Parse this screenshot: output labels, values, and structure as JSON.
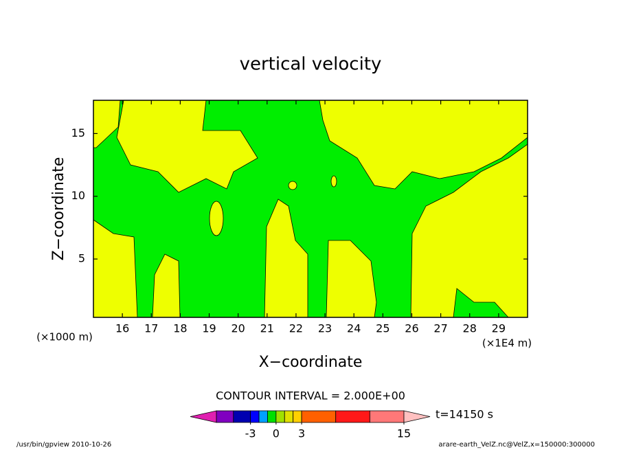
{
  "chart_data": {
    "type": "contour",
    "title": "vertical velocity",
    "xlabel": "X−coordinate",
    "ylabel": "Z−coordinate",
    "xunit": "(×1E4 m)",
    "yunit": "(×1000 m)",
    "xlim": [
      15,
      30
    ],
    "ylim": [
      0.35,
      17.65
    ],
    "xticks": [
      16,
      17,
      18,
      19,
      20,
      21,
      22,
      23,
      24,
      25,
      26,
      27,
      28,
      29
    ],
    "yticks": [
      5,
      10,
      15
    ],
    "contour_interval": "CONTOUR INTERVAL = 2.000E+00",
    "time_label": "t=14150 s",
    "colorbar": {
      "levels": [
        -7,
        -5,
        -3,
        -2,
        -1,
        0,
        1,
        2,
        3,
        7,
        11,
        15
      ],
      "colors": [
        "#8000c0",
        "#0000b0",
        "#0000ff",
        "#00a0ff",
        "#00e000",
        "#a0e000",
        "#e0e000",
        "#ffd000",
        "#ff6000",
        "#ff1818",
        "#ff7878"
      ],
      "under_color": "#e020b0",
      "over_color": "#ffc0c0",
      "ticks": [
        -3,
        0,
        3,
        15
      ]
    },
    "footer_left": "/usr/bin/gpview  2010-10-26",
    "footer_right": "arare-earth_VelZ.nc@VelZ,x=150000:300000"
  }
}
